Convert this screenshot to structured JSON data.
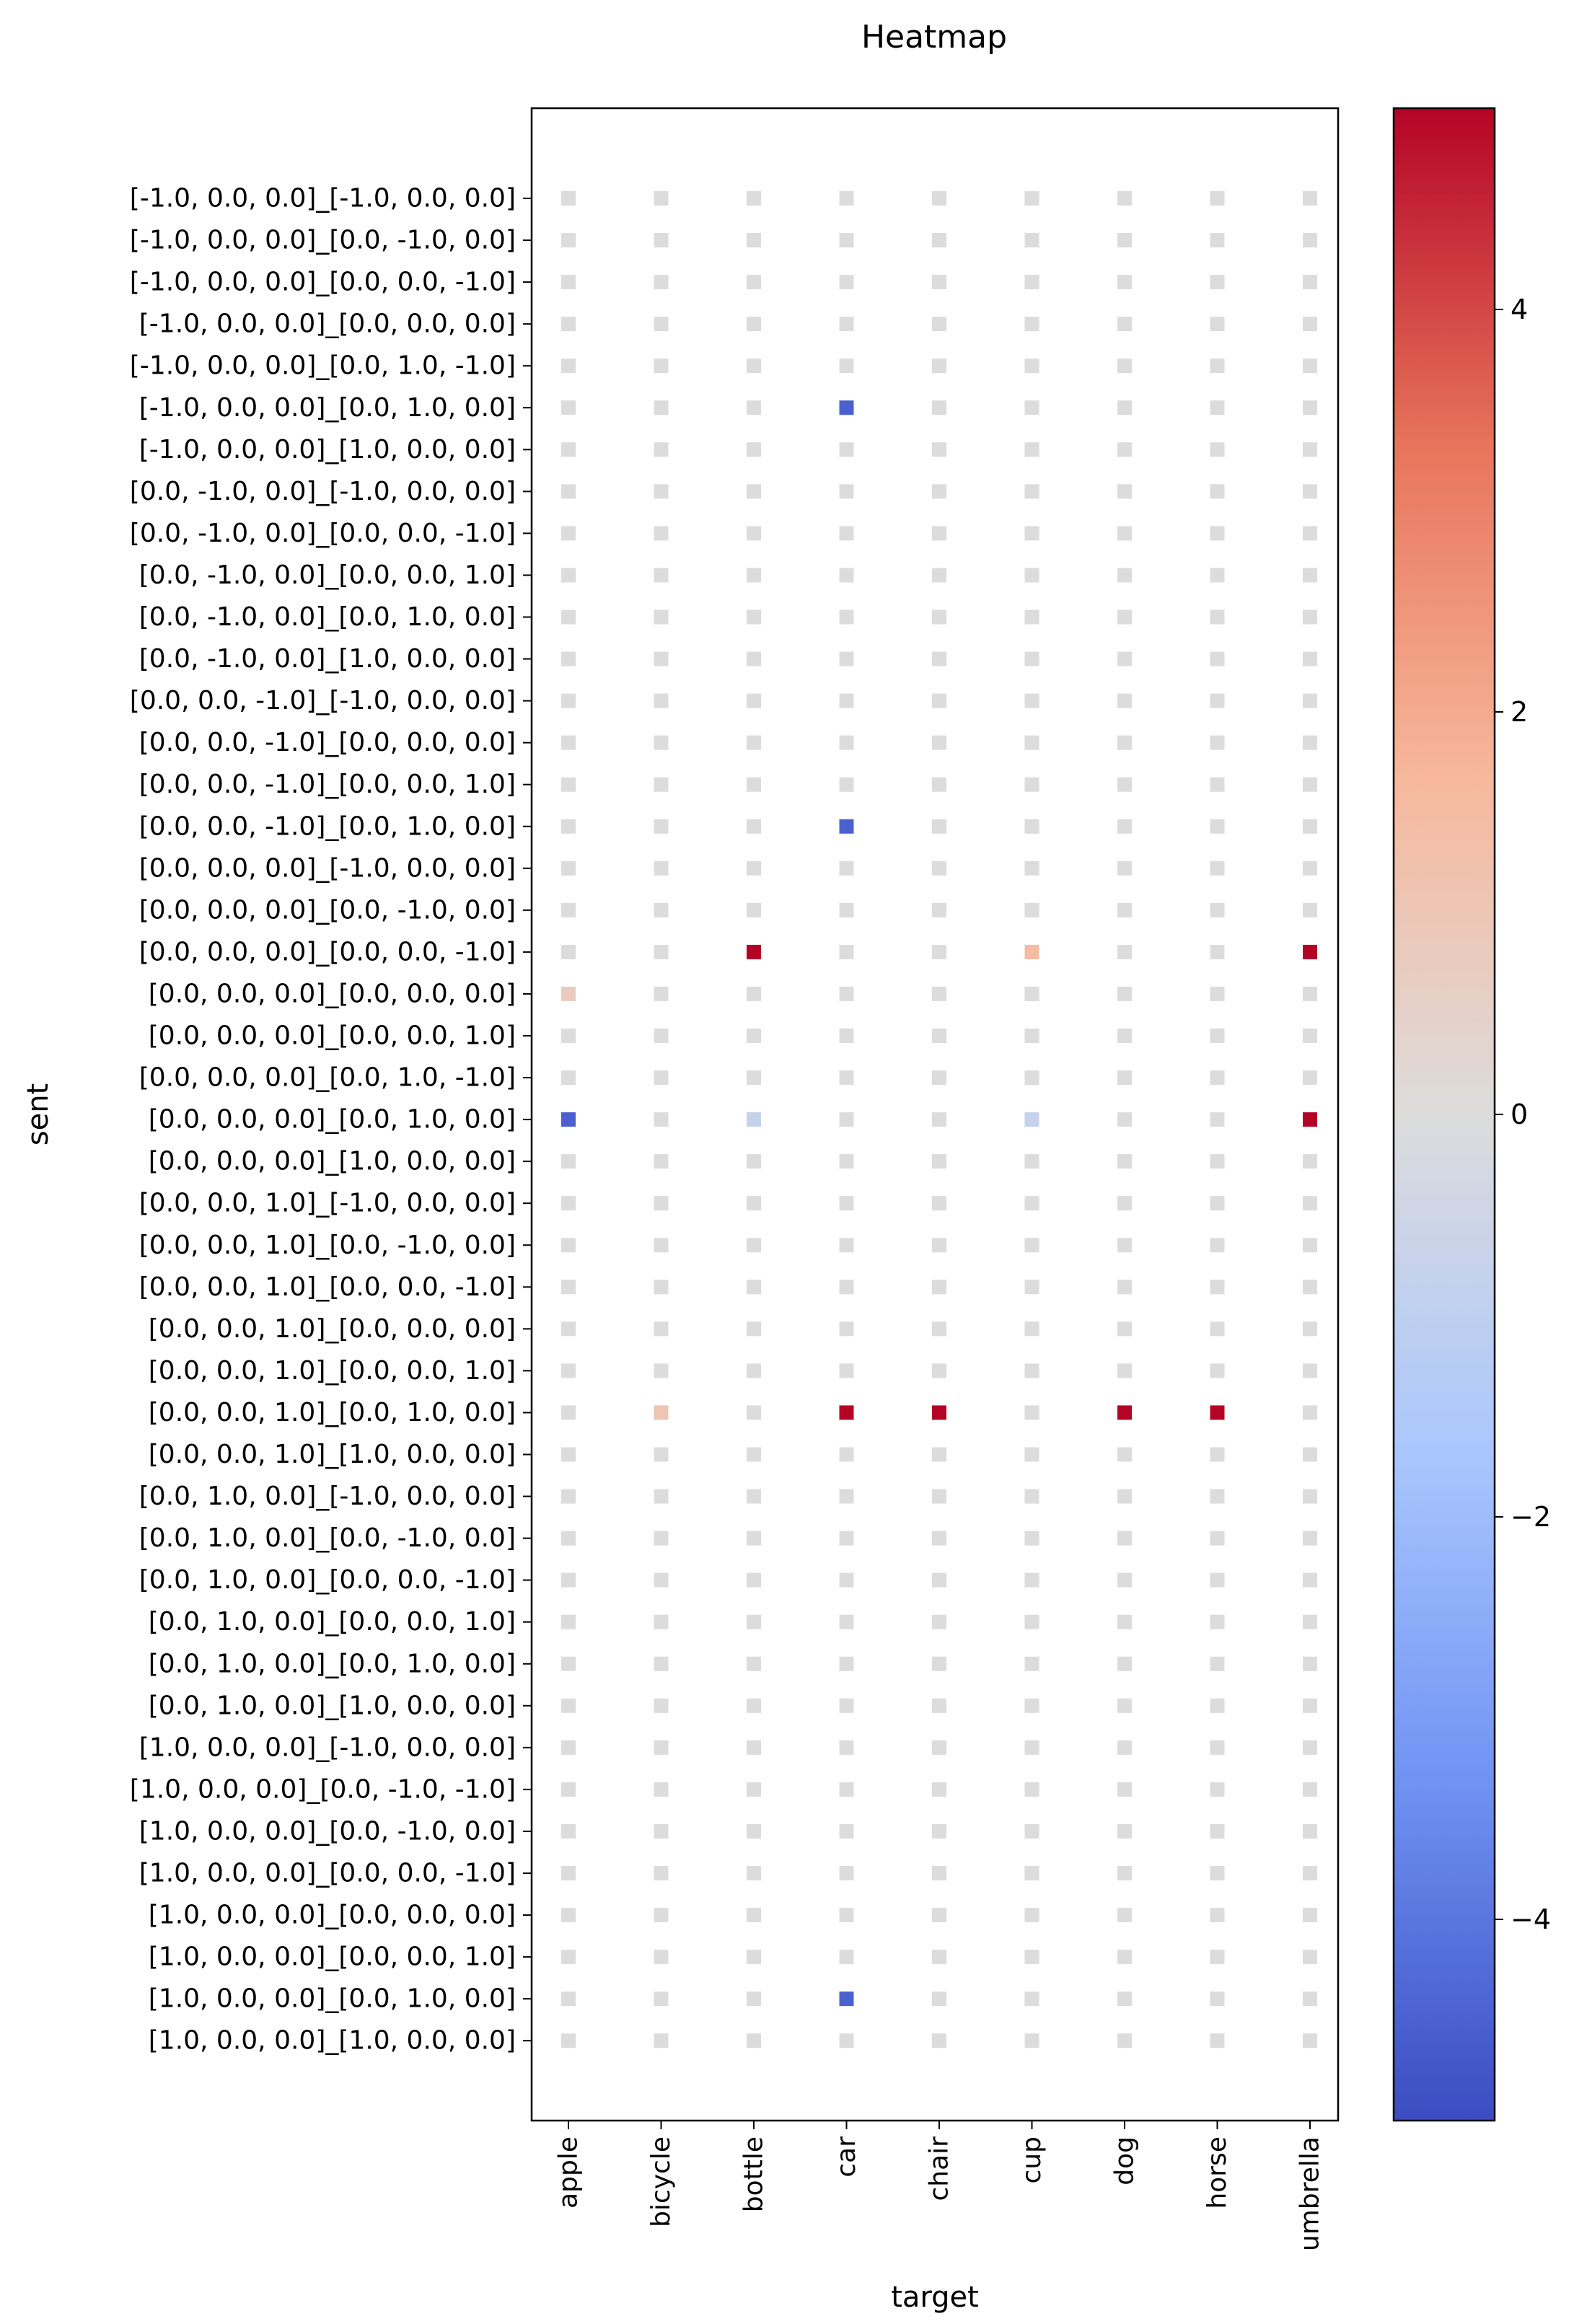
{
  "chart_data": {
    "type": "heatmap",
    "title": "Heatmap",
    "xlabel": "target",
    "ylabel": "sent",
    "x_categories": [
      "apple",
      "bicycle",
      "bottle",
      "car",
      "chair",
      "cup",
      "dog",
      "horse",
      "umbrella"
    ],
    "y_categories": [
      "[-1.0, 0.0, 0.0]_[-1.0, 0.0, 0.0]",
      "[-1.0, 0.0, 0.0]_[0.0, -1.0, 0.0]",
      "[-1.0, 0.0, 0.0]_[0.0, 0.0, -1.0]",
      "[-1.0, 0.0, 0.0]_[0.0, 0.0, 0.0]",
      "[-1.0, 0.0, 0.0]_[0.0, 1.0, -1.0]",
      "[-1.0, 0.0, 0.0]_[0.0, 1.0, 0.0]",
      "[-1.0, 0.0, 0.0]_[1.0, 0.0, 0.0]",
      "[0.0, -1.0, 0.0]_[-1.0, 0.0, 0.0]",
      "[0.0, -1.0, 0.0]_[0.0, 0.0, -1.0]",
      "[0.0, -1.0, 0.0]_[0.0, 0.0, 1.0]",
      "[0.0, -1.0, 0.0]_[0.0, 1.0, 0.0]",
      "[0.0, -1.0, 0.0]_[1.0, 0.0, 0.0]",
      "[0.0, 0.0, -1.0]_[-1.0, 0.0, 0.0]",
      "[0.0, 0.0, -1.0]_[0.0, 0.0, 0.0]",
      "[0.0, 0.0, -1.0]_[0.0, 0.0, 1.0]",
      "[0.0, 0.0, -1.0]_[0.0, 1.0, 0.0]",
      "[0.0, 0.0, 0.0]_[-1.0, 0.0, 0.0]",
      "[0.0, 0.0, 0.0]_[0.0, -1.0, 0.0]",
      "[0.0, 0.0, 0.0]_[0.0, 0.0, -1.0]",
      "[0.0, 0.0, 0.0]_[0.0, 0.0, 0.0]",
      "[0.0, 0.0, 0.0]_[0.0, 0.0, 1.0]",
      "[0.0, 0.0, 0.0]_[0.0, 1.0, -1.0]",
      "[0.0, 0.0, 0.0]_[0.0, 1.0, 0.0]",
      "[0.0, 0.0, 0.0]_[1.0, 0.0, 0.0]",
      "[0.0, 0.0, 1.0]_[-1.0, 0.0, 0.0]",
      "[0.0, 0.0, 1.0]_[0.0, -1.0, 0.0]",
      "[0.0, 0.0, 1.0]_[0.0, 0.0, -1.0]",
      "[0.0, 0.0, 1.0]_[0.0, 0.0, 0.0]",
      "[0.0, 0.0, 1.0]_[0.0, 0.0, 1.0]",
      "[0.0, 0.0, 1.0]_[0.0, 1.0, 0.0]",
      "[0.0, 0.0, 1.0]_[1.0, 0.0, 0.0]",
      "[0.0, 1.0, 0.0]_[-1.0, 0.0, 0.0]",
      "[0.0, 1.0, 0.0]_[0.0, -1.0, 0.0]",
      "[0.0, 1.0, 0.0]_[0.0, 0.0, -1.0]",
      "[0.0, 1.0, 0.0]_[0.0, 0.0, 1.0]",
      "[0.0, 1.0, 0.0]_[0.0, 1.0, 0.0]",
      "[0.0, 1.0, 0.0]_[1.0, 0.0, 0.0]",
      "[1.0, 0.0, 0.0]_[-1.0, 0.0, 0.0]",
      "[1.0, 0.0, 0.0]_[0.0, -1.0, -1.0]",
      "[1.0, 0.0, 0.0]_[0.0, -1.0, 0.0]",
      "[1.0, 0.0, 0.0]_[0.0, 0.0, -1.0]",
      "[1.0, 0.0, 0.0]_[0.0, 0.0, 0.0]",
      "[1.0, 0.0, 0.0]_[0.0, 0.0, 1.0]",
      "[1.0, 0.0, 0.0]_[0.0, 1.0, 0.0]",
      "[1.0, 0.0, 0.0]_[1.0, 0.0, 0.0]"
    ],
    "values": [
      [
        0,
        0,
        0,
        0,
        0,
        0,
        0,
        0,
        0
      ],
      [
        0,
        0,
        0,
        0,
        0,
        0,
        0,
        0,
        0
      ],
      [
        0,
        0,
        0,
        0,
        0,
        0,
        0,
        0,
        0
      ],
      [
        0,
        0,
        0,
        0,
        0,
        0,
        0,
        0,
        0
      ],
      [
        0,
        0,
        0,
        0,
        0,
        0,
        0,
        0,
        0
      ],
      [
        0,
        0,
        0,
        -4.5,
        0,
        0,
        0,
        0,
        0
      ],
      [
        0,
        0,
        0,
        0,
        0,
        0,
        0,
        0,
        0
      ],
      [
        0,
        0,
        0,
        0,
        0,
        0,
        0,
        0,
        0
      ],
      [
        0,
        0,
        0,
        0,
        0,
        0,
        0,
        0,
        0
      ],
      [
        0,
        0,
        0,
        0,
        0,
        0,
        0,
        0,
        0
      ],
      [
        0,
        0,
        0,
        0,
        0,
        0,
        0,
        0,
        0
      ],
      [
        0,
        0,
        0,
        0,
        0,
        0,
        0,
        0,
        0
      ],
      [
        0,
        0,
        0,
        0,
        0,
        0,
        0,
        0,
        0
      ],
      [
        0,
        0,
        0,
        0,
        0,
        0,
        0,
        0,
        0
      ],
      [
        0,
        0,
        0,
        0,
        0,
        0,
        0,
        0,
        0
      ],
      [
        0,
        0,
        0,
        -4.5,
        0,
        0,
        0,
        0,
        0
      ],
      [
        0,
        0,
        0,
        0,
        0,
        0,
        0,
        0,
        0
      ],
      [
        0,
        0,
        0,
        0,
        0,
        0,
        0,
        0,
        0
      ],
      [
        0,
        0,
        5,
        0,
        0,
        1.5,
        0,
        0,
        5
      ],
      [
        0.8,
        0,
        0,
        0,
        0,
        0,
        0,
        0,
        0
      ],
      [
        0,
        0,
        0,
        0,
        0,
        0,
        0,
        0,
        0
      ],
      [
        0,
        0,
        0,
        0,
        0,
        0,
        0,
        0,
        0
      ],
      [
        -4.5,
        0,
        -0.8,
        0,
        0,
        -0.8,
        0,
        0,
        5
      ],
      [
        0,
        0,
        0,
        0,
        0,
        0,
        0,
        0,
        0
      ],
      [
        0,
        0,
        0,
        0,
        0,
        0,
        0,
        0,
        0
      ],
      [
        0,
        0,
        0,
        0,
        0,
        0,
        0,
        0,
        0
      ],
      [
        0,
        0,
        0,
        0,
        0,
        0,
        0,
        0,
        0
      ],
      [
        0,
        0,
        0,
        0,
        0,
        0,
        0,
        0,
        0
      ],
      [
        0,
        0,
        0,
        0,
        0,
        0,
        0,
        0,
        0
      ],
      [
        0,
        1.1,
        0,
        5,
        5,
        0,
        5,
        5,
        0
      ],
      [
        0,
        0,
        0,
        0,
        0,
        0,
        0,
        0,
        0
      ],
      [
        0,
        0,
        0,
        0,
        0,
        0,
        0,
        0,
        0
      ],
      [
        0,
        0,
        0,
        0,
        0,
        0,
        0,
        0,
        0
      ],
      [
        0,
        0,
        0,
        0,
        0,
        0,
        0,
        0,
        0
      ],
      [
        0,
        0,
        0,
        0,
        0,
        0,
        0,
        0,
        0
      ],
      [
        0,
        0,
        0,
        0,
        0,
        0,
        0,
        0,
        0
      ],
      [
        0,
        0,
        0,
        0,
        0,
        0,
        0,
        0,
        0
      ],
      [
        0,
        0,
        0,
        0,
        0,
        0,
        0,
        0,
        0
      ],
      [
        0,
        0,
        0,
        0,
        0,
        0,
        0,
        0,
        0
      ],
      [
        0,
        0,
        0,
        0,
        0,
        0,
        0,
        0,
        0
      ],
      [
        0,
        0,
        0,
        0,
        0,
        0,
        0,
        0,
        0
      ],
      [
        0,
        0,
        0,
        0,
        0,
        0,
        0,
        0,
        0
      ],
      [
        0,
        0,
        0,
        0,
        0,
        0,
        0,
        0,
        0
      ],
      [
        0,
        0,
        0,
        -4.5,
        0,
        0,
        0,
        0,
        0
      ],
      [
        0,
        0,
        0,
        0,
        0,
        0,
        0,
        0,
        0
      ]
    ],
    "colormap": "coolwarm",
    "colormap_stops": [
      "#3b4cc0",
      "#6f92f3",
      "#aac7fd",
      "#dddcdc",
      "#f7b89c",
      "#e7745b",
      "#b40426"
    ],
    "vmin": -5,
    "vmax": 5,
    "colorbar_ticks": [
      -4,
      -2,
      0,
      2,
      4
    ],
    "colorbar_tick_labels": [
      "−4",
      "−2",
      "0",
      "2",
      "4"
    ],
    "grid": false,
    "legend": "colorbar-right"
  }
}
